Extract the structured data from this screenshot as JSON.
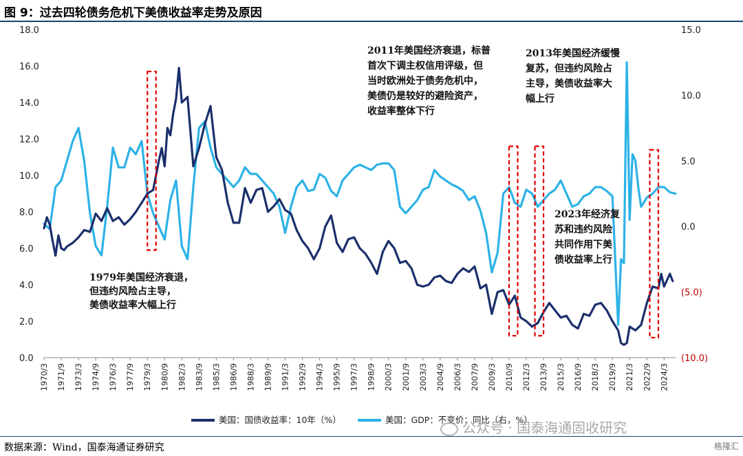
{
  "figure": {
    "title": "图 9：过去四轮债务危机下美债收益率走势及原因",
    "source": "数据来源：Wind，国泰海通证券研究",
    "watermark": "公众号 · 国泰海通固收研究",
    "corner_logo": "格隆汇"
  },
  "colors": {
    "yield": "#1b2f6b",
    "gdp": "#2db2e6",
    "highlight_box": "#e00000",
    "negative_tick": "#c00000"
  },
  "chart_data": {
    "type": "line",
    "left_axis": {
      "ylim": [
        0,
        18
      ],
      "ticks": [
        "0.0",
        "2.0",
        "4.0",
        "6.0",
        "8.0",
        "10.0",
        "12.0",
        "14.0",
        "16.0",
        "18.0"
      ]
    },
    "right_axis": {
      "ylim": [
        -10,
        15
      ],
      "ticks": [
        "(10.0)",
        "(5.0)",
        "0.0",
        "5.0",
        "10.0",
        "15.0"
      ]
    },
    "x_tick_labels": [
      "1970/3",
      "1971/9",
      "1973/3",
      "1974/9",
      "1976/3",
      "1977/9",
      "1979/3",
      "1980/9",
      "1982/3",
      "1983/9",
      "1985/3",
      "1986/9",
      "1988/3",
      "1989/9",
      "1991/3",
      "1992/9",
      "1994/3",
      "1995/9",
      "1997/3",
      "1998/9",
      "2000/3",
      "2001/9",
      "2003/3",
      "2004/9",
      "2006/3",
      "2007/9",
      "2009/3",
      "2010/9",
      "2012/3",
      "2013/9",
      "2015/3",
      "2016/9",
      "2018/3",
      "2019/9",
      "2021/3",
      "2022/9",
      "2024/3"
    ],
    "legend_position": "bottom",
    "series": [
      {
        "name": "美国：国债收益率：10年（%）",
        "axis": "left",
        "x": [
          1970.0,
          1970.25,
          1970.5,
          1970.75,
          1971.0,
          1971.25,
          1971.5,
          1971.75,
          1972.0,
          1972.5,
          1973.0,
          1973.5,
          1974.0,
          1974.5,
          1975.0,
          1975.5,
          1976.0,
          1976.5,
          1977.0,
          1977.5,
          1978.0,
          1978.5,
          1979.0,
          1979.5,
          1980.0,
          1980.25,
          1980.5,
          1980.75,
          1981.0,
          1981.25,
          1981.5,
          1981.75,
          1982.0,
          1982.5,
          1983.0,
          1983.5,
          1984.0,
          1984.5,
          1985.0,
          1985.5,
          1986.0,
          1986.5,
          1987.0,
          1987.5,
          1988.0,
          1988.5,
          1989.0,
          1989.5,
          1990.0,
          1990.5,
          1991.0,
          1991.5,
          1992.0,
          1992.5,
          1993.0,
          1993.5,
          1994.0,
          1994.5,
          1995.0,
          1995.5,
          1996.0,
          1996.5,
          1997.0,
          1997.5,
          1998.0,
          1998.5,
          1999.0,
          1999.5,
          2000.0,
          2000.5,
          2001.0,
          2001.5,
          2002.0,
          2002.5,
          2003.0,
          2003.5,
          2004.0,
          2004.5,
          2005.0,
          2005.5,
          2006.0,
          2006.5,
          2007.0,
          2007.5,
          2008.0,
          2008.5,
          2009.0,
          2009.5,
          2010.0,
          2010.5,
          2011.0,
          2011.5,
          2012.0,
          2012.5,
          2013.0,
          2013.5,
          2014.0,
          2014.5,
          2015.0,
          2015.5,
          2016.0,
          2016.5,
          2017.0,
          2017.5,
          2018.0,
          2018.5,
          2019.0,
          2019.5,
          2020.0,
          2020.25,
          2020.5,
          2020.75,
          2021.0,
          2021.5,
          2022.0,
          2022.5,
          2023.0,
          2023.5,
          2023.75,
          2024.0,
          2024.5,
          2024.75
        ],
        "values": [
          7.1,
          7.7,
          7.3,
          6.4,
          5.6,
          6.7,
          6.0,
          5.9,
          6.1,
          6.3,
          6.6,
          7.0,
          6.9,
          7.9,
          7.5,
          8.2,
          7.5,
          7.7,
          7.3,
          7.6,
          8.0,
          8.5,
          9.0,
          9.2,
          10.8,
          11.5,
          10.5,
          12.6,
          12.2,
          13.4,
          14.2,
          15.9,
          14.0,
          14.3,
          10.5,
          11.5,
          12.8,
          13.8,
          11.0,
          10.3,
          8.5,
          7.4,
          7.4,
          9.3,
          8.5,
          9.2,
          9.3,
          8.0,
          8.3,
          8.7,
          8.1,
          7.9,
          7.0,
          6.4,
          6.0,
          5.4,
          6.0,
          7.2,
          7.8,
          6.3,
          5.8,
          6.5,
          6.6,
          6.0,
          5.7,
          5.2,
          4.6,
          5.8,
          6.4,
          6.0,
          5.2,
          5.3,
          4.9,
          4.0,
          3.9,
          4.0,
          4.4,
          4.5,
          4.2,
          4.1,
          4.6,
          4.9,
          4.7,
          5.0,
          3.8,
          4.0,
          2.4,
          3.6,
          3.7,
          2.9,
          3.4,
          2.2,
          2.0,
          1.7,
          1.9,
          2.5,
          3.0,
          2.6,
          2.2,
          2.3,
          1.8,
          1.6,
          2.4,
          2.3,
          2.9,
          3.0,
          2.6,
          2.0,
          1.5,
          0.8,
          0.7,
          0.8,
          1.7,
          1.5,
          1.8,
          3.0,
          3.9,
          3.8,
          4.6,
          3.9,
          4.6,
          4.2
        ]
      },
      {
        "name": "美国：GDP：不变价：同比（右，%）",
        "axis": "right",
        "x": [
          1970.0,
          1970.5,
          1971.0,
          1971.5,
          1972.0,
          1972.5,
          1973.0,
          1973.5,
          1974.0,
          1974.5,
          1975.0,
          1975.5,
          1976.0,
          1976.5,
          1977.0,
          1977.5,
          1978.0,
          1978.5,
          1979.0,
          1979.5,
          1980.0,
          1980.5,
          1981.0,
          1981.5,
          1982.0,
          1982.5,
          1983.0,
          1983.5,
          1984.0,
          1984.5,
          1985.0,
          1985.5,
          1986.0,
          1986.5,
          1987.0,
          1987.5,
          1988.0,
          1988.5,
          1989.0,
          1989.5,
          1990.0,
          1990.5,
          1991.0,
          1991.5,
          1992.0,
          1992.5,
          1993.0,
          1993.5,
          1994.0,
          1994.5,
          1995.0,
          1995.5,
          1996.0,
          1996.5,
          1997.0,
          1997.5,
          1998.0,
          1998.5,
          1999.0,
          1999.5,
          2000.0,
          2000.5,
          2001.0,
          2001.5,
          2002.0,
          2002.5,
          2003.0,
          2003.5,
          2004.0,
          2004.5,
          2005.0,
          2005.5,
          2006.0,
          2006.5,
          2007.0,
          2007.5,
          2008.0,
          2008.5,
          2009.0,
          2009.5,
          2010.0,
          2010.5,
          2011.0,
          2011.5,
          2012.0,
          2012.5,
          2013.0,
          2013.5,
          2014.0,
          2014.5,
          2015.0,
          2015.5,
          2016.0,
          2016.5,
          2017.0,
          2017.5,
          2018.0,
          2018.5,
          2019.0,
          2019.5,
          2020.0,
          2020.25,
          2020.5,
          2020.75,
          2021.0,
          2021.25,
          2021.5,
          2021.75,
          2022.0,
          2022.5,
          2023.0,
          2023.5,
          2024.0,
          2024.5,
          2025.0
        ],
        "values": [
          0.2,
          -0.2,
          3.0,
          3.5,
          5.0,
          6.5,
          7.5,
          5.0,
          1.0,
          -1.5,
          -2.2,
          1.5,
          6.0,
          4.5,
          4.5,
          6.0,
          5.5,
          6.5,
          2.5,
          1.0,
          0.0,
          -1.0,
          2.0,
          3.5,
          -1.5,
          -2.5,
          3.0,
          7.5,
          8.0,
          6.0,
          4.5,
          4.0,
          3.5,
          3.0,
          3.5,
          4.5,
          4.0,
          4.0,
          3.5,
          3.0,
          2.5,
          1.5,
          -0.5,
          1.5,
          3.0,
          3.5,
          2.7,
          2.8,
          4.0,
          3.7,
          2.7,
          2.3,
          3.5,
          4.0,
          4.5,
          4.7,
          4.5,
          4.3,
          4.7,
          4.8,
          4.8,
          4.3,
          1.5,
          1.0,
          1.5,
          2.0,
          2.8,
          3.0,
          4.3,
          3.8,
          3.5,
          3.2,
          3.0,
          2.7,
          2.0,
          2.3,
          1.2,
          -0.5,
          -3.5,
          -2.0,
          2.5,
          3.0,
          1.8,
          1.5,
          2.8,
          2.5,
          1.5,
          2.0,
          2.5,
          2.8,
          3.5,
          2.5,
          1.5,
          1.7,
          2.3,
          2.5,
          3.0,
          3.0,
          2.7,
          2.3,
          -7.5,
          -2.5,
          -2.8,
          12.5,
          0.5,
          5.5,
          5.0,
          3.0,
          1.5,
          2.2,
          2.5,
          3.0,
          3.0,
          2.6,
          2.5
        ]
      }
    ],
    "highlight_periods": [
      {
        "x": [
          1979.0,
          1979.75
        ],
        "y": [
          5.9,
          15.7
        ]
      },
      {
        "x": [
          2010.5,
          2011.25
        ],
        "y": [
          1.2,
          11.6
        ]
      },
      {
        "x": [
          2012.75,
          2013.5
        ],
        "y": [
          1.2,
          11.6
        ]
      },
      {
        "x": [
          2022.75,
          2023.5
        ],
        "y": [
          1.1,
          11.4
        ]
      }
    ],
    "annotations": [
      {
        "lines": [
          "1979年美国经济衰退，",
          "但违约风险占主导，",
          "美债收益率大幅上行"
        ]
      },
      {
        "lines": [
          "2011年美国经济衰退，标普",
          "首次下调主权信用评级，但",
          "当时欧洲处于债务危机中，",
          "美债仍是较好的避险资产，",
          "收益率整体下行"
        ]
      },
      {
        "lines": [
          "2013年美国经济缓慢",
          "复苏，但违约风险占",
          "主导，美债收益率大",
          "幅上行"
        ]
      },
      {
        "lines": [
          "2023年经济复",
          "苏和违约风险",
          "共同作用下美",
          "债收益率上行"
        ]
      }
    ]
  }
}
